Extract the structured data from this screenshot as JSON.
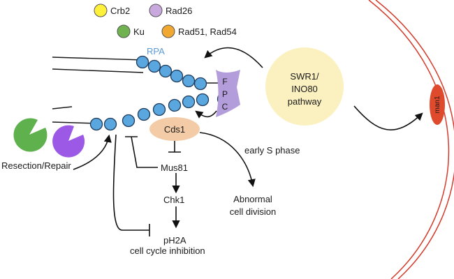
{
  "legend": {
    "crb2": {
      "label": "Crb2",
      "color": "#fff03c"
    },
    "rad26": {
      "label": "Rad26",
      "color": "#c9a9dd"
    },
    "ku": {
      "label": "Ku",
      "color": "#6fb24f"
    },
    "rad51_rad54": {
      "label": "Rad51, Rad54",
      "color": "#f0a830"
    }
  },
  "labels": {
    "rpa": "RPA",
    "fpc_letters": [
      "F",
      "P",
      "C"
    ],
    "swr1_lines": [
      "SWR1/",
      "INO80",
      "pathway"
    ],
    "cds1": "Cds1",
    "early_s_phase": "early S phase",
    "mus81": "Mus81",
    "chk1": "Chk1",
    "ph2a": "pH2A",
    "cell_cycle_inhibition": "cell cycle inhibition",
    "abnormal_lines": [
      "Abnormal",
      "cell division"
    ],
    "resection_repair": "Resection/Repair",
    "man1": "man1"
  },
  "colors": {
    "rpa_bead": "#5aa7e0",
    "rpa_label": "#5b9bd5",
    "fpc": "#b39ddb",
    "swr1": "#fbf0c0",
    "cds1": "#f3cca7",
    "membrane": "#d43a2a",
    "man1": "#e04a2c",
    "pacman_green": "#5fb14e",
    "pacman_purple": "#9b59e6"
  }
}
